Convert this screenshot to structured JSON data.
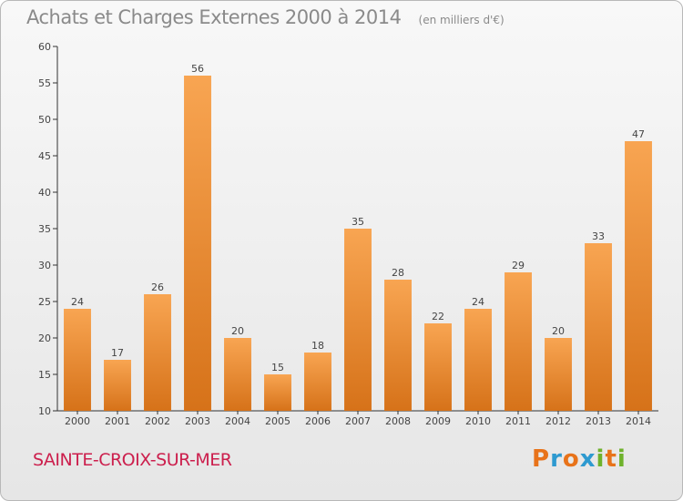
{
  "header": {
    "title": "Achats et Charges Externes 2000 à 2014",
    "unit": "(en milliers d'€)"
  },
  "footer": {
    "commune": "SAINTE-CROIX-SUR-MER",
    "logo": "Proxiti",
    "logo_colors": [
      "#e8731a",
      "#2e9ad0",
      "#e8731a",
      "#2e9ad0",
      "#6fb22c",
      "#e8731a",
      "#6fb22c"
    ]
  },
  "colors": {
    "bar_light": "#f8a552",
    "bar_dark": "#d67219",
    "axis": "#333333",
    "grid": "#cccccc",
    "commune": "#cc1f4d"
  },
  "chart_data": {
    "type": "bar",
    "title": "Achats et Charges Externes 2000 à 2014",
    "subtitle": "(en milliers d'€)",
    "xlabel": "",
    "ylabel": "",
    "categories": [
      "2000",
      "2001",
      "2002",
      "2003",
      "2004",
      "2005",
      "2006",
      "2007",
      "2008",
      "2009",
      "2010",
      "2011",
      "2012",
      "2013",
      "2014"
    ],
    "values": [
      24,
      17,
      26,
      56,
      20,
      15,
      18,
      35,
      28,
      22,
      24,
      29,
      20,
      33,
      47
    ],
    "ylim": [
      10,
      60
    ],
    "yticks": [
      10,
      15,
      20,
      25,
      30,
      35,
      40,
      45,
      50,
      55,
      60
    ],
    "grid": false,
    "legend": "none"
  }
}
